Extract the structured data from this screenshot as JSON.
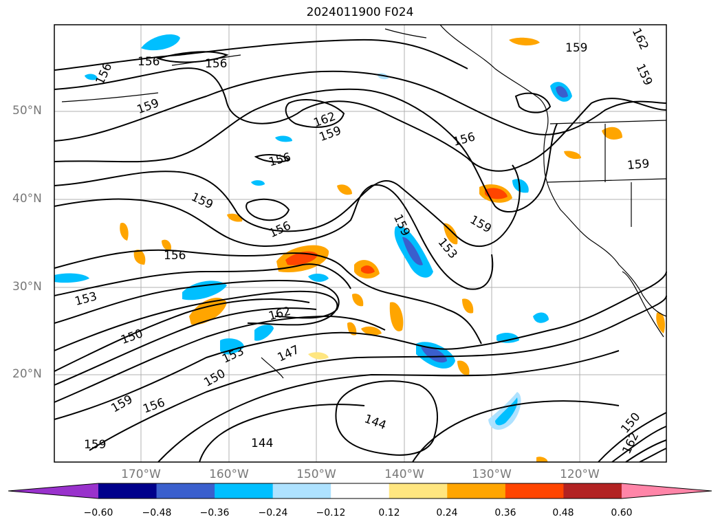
{
  "title": "2024011900 F024",
  "lat_labels": [
    "50°N",
    "40°N",
    "30°N",
    "20°N"
  ],
  "lon_labels": [
    "170°W",
    "160°W",
    "150°W",
    "140°W",
    "130°W",
    "120°W"
  ],
  "colorbar": {
    "ticks": [
      "−0.60",
      "−0.48",
      "−0.36",
      "−0.24",
      "−0.12",
      "0.12",
      "0.24",
      "0.36",
      "0.48",
      "0.60"
    ],
    "colors": [
      "#9932cc",
      "#00008b",
      "#3a5fcd",
      "#00bfff",
      "#aee2ff",
      "#ffffff",
      "#ffe680",
      "#ffa500",
      "#ff4500",
      "#b22222",
      "#ff85a8"
    ]
  },
  "contour_labels": [
    "156",
    "156",
    "159",
    "156",
    "162",
    "159",
    "156",
    "159",
    "159",
    "156",
    "153",
    "156",
    "150",
    "162",
    "147",
    "153",
    "150",
    "159",
    "156",
    "159",
    "144",
    "144",
    "159",
    "159",
    "162",
    "156",
    "159",
    "153",
    "150",
    "159",
    "162"
  ]
}
